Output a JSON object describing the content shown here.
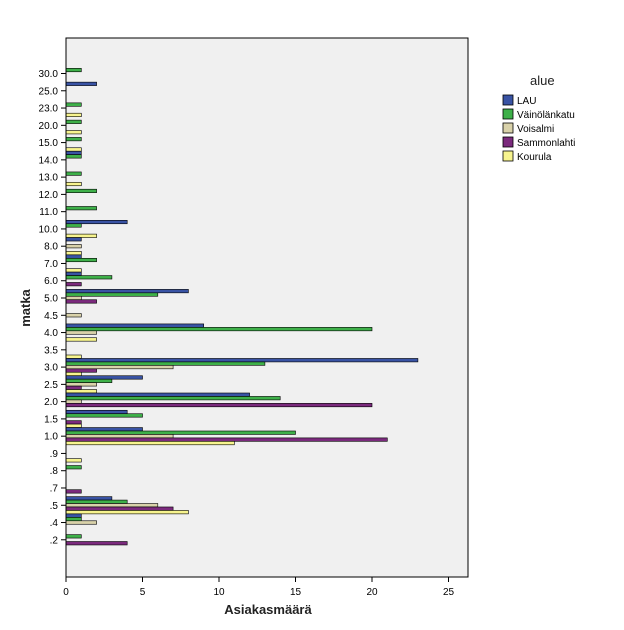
{
  "chart_data": {
    "type": "bar",
    "orientation": "horizontal",
    "xlabel": "Asiakasmäärä",
    "ylabel": "matka",
    "xlim": [
      0,
      26
    ],
    "x_ticks": [
      "0",
      "5",
      "10",
      "15",
      "20",
      "25"
    ],
    "grid": false,
    "plot_background": "#f0f0f0",
    "legend": {
      "title": "alue",
      "position": "right"
    },
    "categories": [
      "30.0",
      "25.0",
      "23.0",
      "20.0",
      "15.0",
      "14.0",
      "13.0",
      "12.0",
      "11.0",
      "10.0",
      "8.0",
      "7.0",
      "6.0",
      "5.0",
      "4.5",
      "4.0",
      "3.5",
      "3.0",
      "2.5",
      "2.0",
      "1.5",
      "1.0",
      ".9",
      ".8",
      ".7",
      ".5",
      ".4",
      ".2"
    ],
    "series": [
      {
        "name": "LAU",
        "color": "#3953a4",
        "values": [
          null,
          2,
          null,
          null,
          null,
          1,
          null,
          null,
          null,
          4,
          1,
          1,
          1,
          8,
          null,
          9,
          null,
          23,
          5,
          12,
          4,
          5,
          null,
          null,
          null,
          3,
          1,
          null
        ]
      },
      {
        "name": "Väinölänkatu",
        "color": "#3eb049",
        "values": [
          1,
          null,
          1,
          1,
          1,
          1,
          1,
          2,
          2,
          1,
          null,
          2,
          3,
          6,
          null,
          20,
          null,
          13,
          3,
          14,
          5,
          15,
          null,
          1,
          null,
          4,
          1,
          1
        ]
      },
      {
        "name": "Voisalmi",
        "color": "#d9d2aa",
        "values": [
          null,
          null,
          null,
          null,
          null,
          null,
          null,
          null,
          null,
          null,
          1,
          null,
          null,
          1,
          1,
          2,
          null,
          7,
          2,
          1,
          null,
          7,
          null,
          null,
          null,
          6,
          2,
          null
        ]
      },
      {
        "name": "Sammonlahti",
        "color": "#7b2a7d",
        "values": [
          null,
          null,
          null,
          null,
          null,
          null,
          null,
          null,
          null,
          null,
          null,
          null,
          1,
          2,
          null,
          null,
          null,
          2,
          1,
          20,
          1,
          21,
          null,
          null,
          1,
          7,
          null,
          4
        ]
      },
      {
        "name": "Kourula",
        "color": "#f7f48e",
        "values": [
          null,
          null,
          1,
          1,
          1,
          null,
          1,
          null,
          null,
          2,
          1,
          1,
          null,
          null,
          null,
          2,
          1,
          1,
          2,
          null,
          1,
          11,
          1,
          null,
          null,
          8,
          null,
          null
        ]
      }
    ]
  }
}
